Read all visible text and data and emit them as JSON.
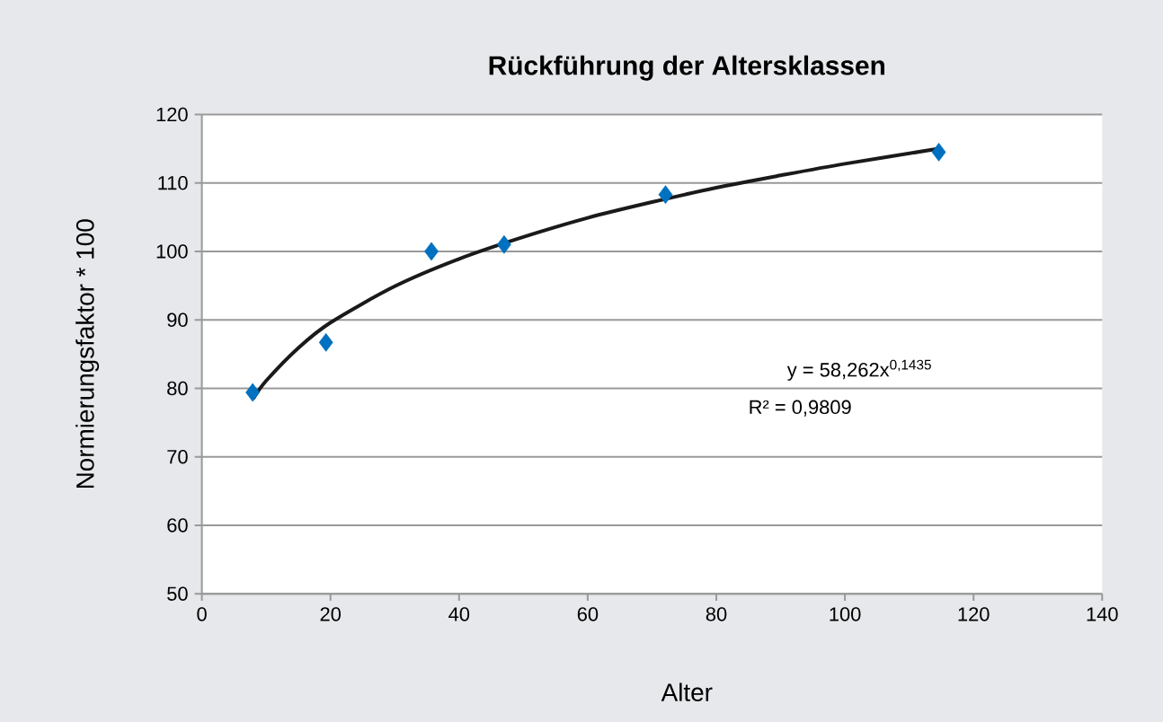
{
  "chart_data": {
    "type": "scatter",
    "title": "Rückführung der Altersklassen",
    "xlabel": "Alter",
    "ylabel": "Normierungsfaktor * 100",
    "series": [
      {
        "color": "#0070c0",
        "marker": "diamond",
        "x": [
          7.9,
          19.3,
          35.7,
          47.0,
          72.1,
          114.6
        ],
        "values": [
          79.4,
          86.7,
          100.0,
          101.0,
          108.3,
          114.5
        ]
      },
      {
        "type": "line",
        "color": "#1a1a1a",
        "marker": "none",
        "line_style": "solid",
        "x": [
          8,
          10,
          15,
          20,
          30,
          40,
          50,
          60,
          70,
          80,
          90,
          100,
          114.6
        ],
        "values": [
          78.5,
          81.1,
          85.9,
          89.6,
          94.9,
          98.9,
          102.1,
          104.9,
          107.2,
          109.3,
          111.1,
          112.8,
          115.0
        ]
      }
    ],
    "annotations": [
      "y = 58,262x$^{0,1435}$",
      "R² = 0,9809"
    ],
    "xlim": [
      0,
      140
    ],
    "xticks": [
      0,
      20,
      40,
      60,
      80,
      100,
      120,
      140
    ],
    "ylim": [
      50,
      120
    ],
    "yticks": [
      50,
      60,
      70,
      80,
      90,
      100,
      110,
      120
    ],
    "grid": "y"
  }
}
